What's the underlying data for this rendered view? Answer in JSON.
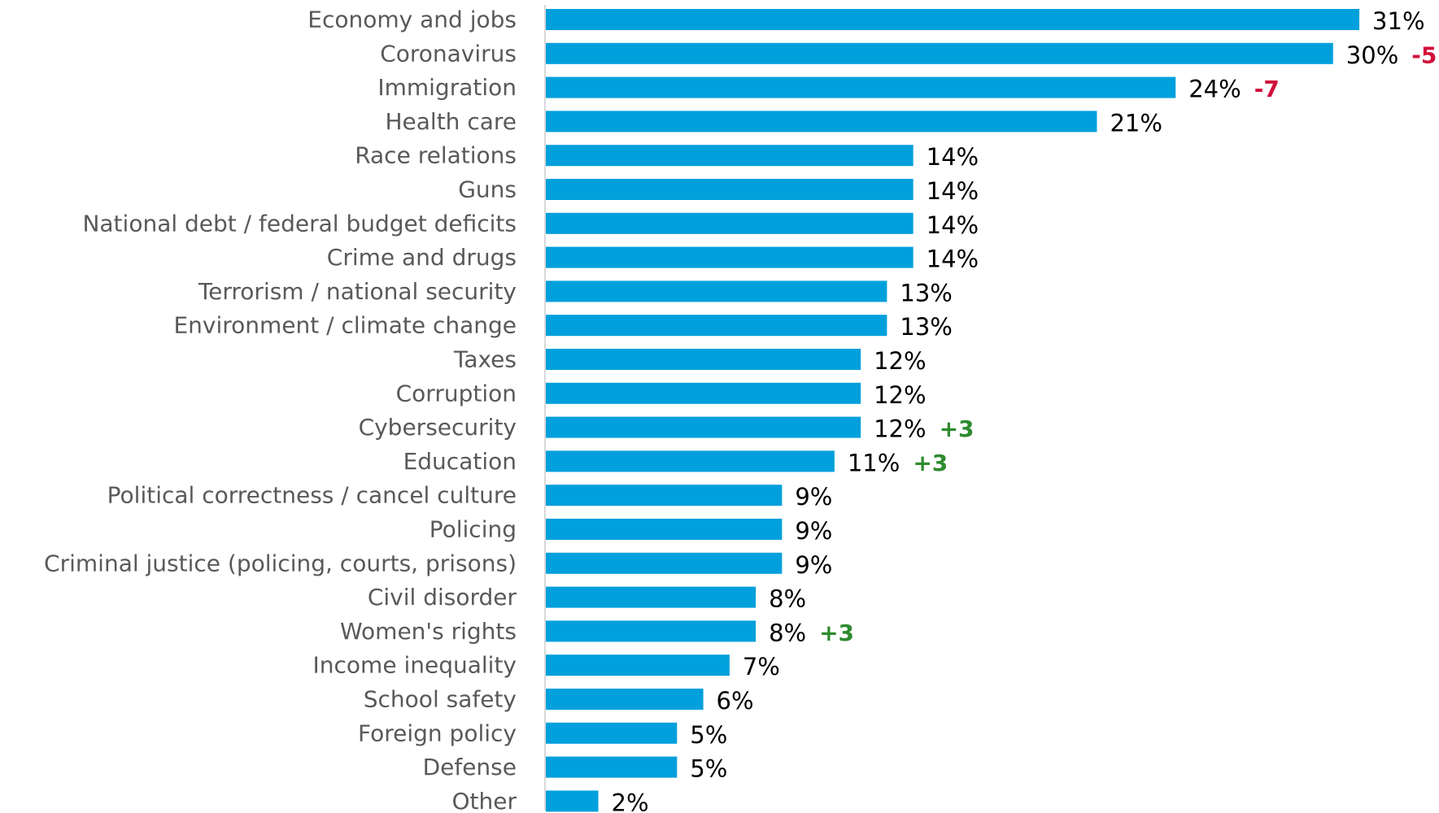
{
  "chart_data": {
    "type": "bar",
    "orientation": "horizontal",
    "title": "",
    "xlabel": "",
    "ylabel": "",
    "xlim": [
      0,
      31
    ],
    "grid": false,
    "legend": "none",
    "bar_color": "#00A0DC",
    "axis_color": "#D9D9D9",
    "category_label_color": "#595959",
    "positive_change_color": "#2E8B2E",
    "negative_change_color": "#D0103A",
    "categories": [
      "Economy and jobs",
      "Coronavirus",
      "Immigration",
      "Health care",
      "Race relations",
      "Guns",
      "National debt / federal budget deficits",
      "Crime and drugs",
      "Terrorism / national security",
      "Environment / climate change",
      "Taxes",
      "Corruption",
      "Cybersecurity",
      "Education",
      "Political correctness / cancel culture",
      "Policing",
      "Criminal justice (policing, courts, prisons)",
      "Civil disorder",
      "Women's rights",
      "Income inequality",
      "School safety",
      "Foreign policy",
      "Defense",
      "Other"
    ],
    "values": [
      31,
      30,
      24,
      21,
      14,
      14,
      14,
      14,
      13,
      13,
      12,
      12,
      12,
      11,
      9,
      9,
      9,
      8,
      8,
      7,
      6,
      5,
      5,
      2
    ],
    "labels": [
      "31%",
      "30%",
      "24%",
      "21%",
      "14%",
      "14%",
      "14%",
      "14%",
      "13%",
      "13%",
      "12%",
      "12%",
      "12%",
      "11%",
      "9%",
      "9%",
      "9%",
      "8%",
      "8%",
      "7%",
      "6%",
      "5%",
      "5%",
      "2%"
    ],
    "changes": [
      "",
      "-5",
      "-7",
      "",
      "",
      "",
      "",
      "",
      "",
      "",
      "",
      "",
      "+3",
      "+3",
      "",
      "",
      "",
      "",
      "+3",
      "",
      "",
      "",
      "",
      ""
    ]
  }
}
